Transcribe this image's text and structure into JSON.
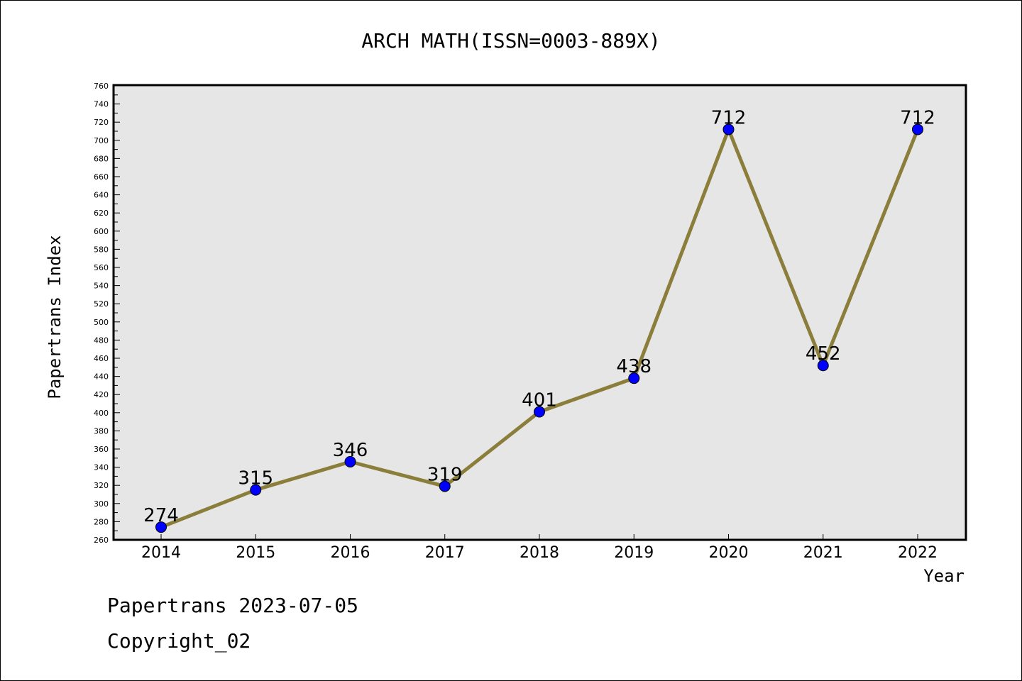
{
  "chart_data": {
    "type": "line",
    "title": "ARCH MATH(ISSN=0003-889X)",
    "xlabel": "Year",
    "ylabel": "Papertrans Index",
    "categories": [
      "2014",
      "2015",
      "2016",
      "2017",
      "2018",
      "2019",
      "2020",
      "2021",
      "2022"
    ],
    "series": [
      {
        "values": [
          274,
          315,
          346,
          319,
          401,
          438,
          712,
          452,
          712
        ]
      }
    ],
    "ylim": [
      260,
      760
    ],
    "y_ticks": [
      260,
      280,
      300,
      320,
      340,
      360,
      380,
      400,
      420,
      440,
      460,
      480,
      500,
      520,
      540,
      560,
      580,
      600,
      620,
      640,
      660,
      680,
      700,
      720,
      740,
      760
    ],
    "grid": false,
    "data_labels": true,
    "colors": {
      "line": "#8b7d3a",
      "marker": "#0000ff",
      "plot_background": "#e6e6e6"
    }
  },
  "footer": {
    "line1": "Papertrans 2023-07-05",
    "line2": "Copyright_02"
  }
}
